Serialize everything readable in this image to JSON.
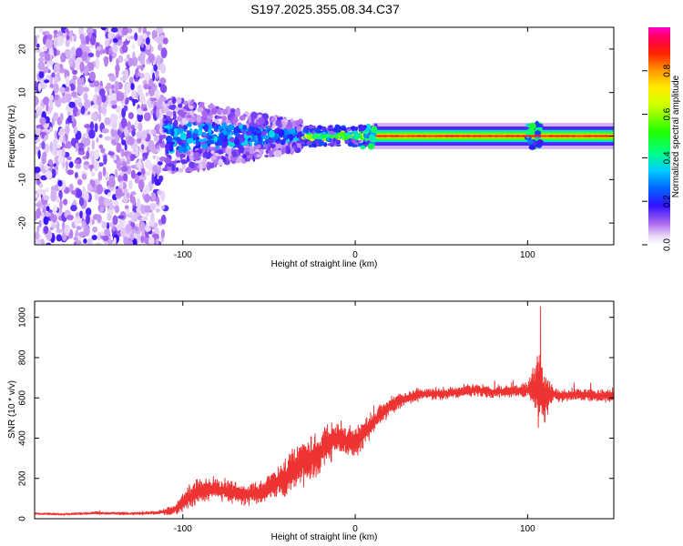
{
  "title": "S197.2025.355.08.34.C37",
  "chart_data": [
    {
      "type": "heatmap",
      "name": "spectrogram",
      "xlabel": "Height of straight line (km)",
      "ylabel": "Frequency (Hz)",
      "xlim": [
        -186,
        150
      ],
      "ylim": [
        -25,
        25
      ],
      "xticks": [
        "-100",
        "0",
        "100"
      ],
      "yticks": [
        "20",
        "10",
        "0",
        "-10",
        "-20"
      ],
      "yticks_values": [
        20,
        10,
        0,
        -10,
        -20
      ],
      "xticks_values": [
        -100,
        0,
        100
      ],
      "colorbar": {
        "label": "Normalized spectral amplitude",
        "range": [
          0,
          1
        ],
        "ticks": [
          "0.0",
          "0.2",
          "0.4",
          "0.6",
          "0.8"
        ],
        "ticks_values": [
          0.0,
          0.2,
          0.4,
          0.6,
          0.8
        ]
      },
      "description_regions": [
        {
          "x_range": [
            -186,
            -110
          ],
          "freq_range": [
            -25,
            25
          ],
          "amplitude": "low, scattered noise"
        },
        {
          "x_range": [
            -110,
            -30
          ],
          "freq_range": [
            -8,
            8
          ],
          "amplitude": "medium, tapering"
        },
        {
          "x_range": [
            -30,
            10
          ],
          "freq_range": [
            -2,
            2
          ],
          "amplitude": "medium-high"
        },
        {
          "x_range": [
            10,
            150
          ],
          "freq_range": [
            -1,
            1
          ],
          "amplitude": "high, centered at 0 Hz"
        }
      ]
    },
    {
      "type": "line",
      "name": "snr",
      "xlabel": "Height of straight line (km)",
      "ylabel": "SNR (10 * v/v)",
      "xlim": [
        -186,
        150
      ],
      "ylim": [
        0,
        1080
      ],
      "xticks": [
        "-100",
        "0",
        "100"
      ],
      "xticks_values": [
        -100,
        0,
        100
      ],
      "yticks": [
        "0",
        "200",
        "400",
        "600",
        "800",
        "1000"
      ],
      "yticks_values": [
        0,
        200,
        400,
        600,
        800,
        1000
      ],
      "color": "#ee3333",
      "x": [
        -186,
        -170,
        -150,
        -130,
        -115,
        -106,
        -100,
        -95,
        -85,
        -75,
        -65,
        -55,
        -45,
        -38,
        -32,
        -25,
        -20,
        -15,
        -10,
        -5,
        0,
        5,
        10,
        15,
        20,
        25,
        30,
        35,
        40,
        50,
        60,
        70,
        80,
        90,
        100,
        104,
        107,
        110,
        115,
        120,
        130,
        140,
        150
      ],
      "values": [
        25,
        22,
        28,
        25,
        30,
        40,
        80,
        120,
        150,
        140,
        120,
        130,
        180,
        220,
        280,
        300,
        340,
        380,
        400,
        390,
        380,
        420,
        470,
        520,
        560,
        580,
        600,
        610,
        620,
        620,
        630,
        640,
        630,
        635,
        640,
        650,
        660,
        600,
        620,
        610,
        620,
        610,
        610
      ],
      "noise_amplitude": [
        6,
        6,
        8,
        8,
        10,
        25,
        45,
        60,
        60,
        55,
        50,
        60,
        80,
        100,
        120,
        110,
        100,
        90,
        90,
        80,
        70,
        70,
        60,
        50,
        45,
        40,
        35,
        35,
        30,
        30,
        30,
        30,
        30,
        30,
        30,
        120,
        250,
        120,
        30,
        30,
        30,
        30,
        30
      ]
    }
  ]
}
